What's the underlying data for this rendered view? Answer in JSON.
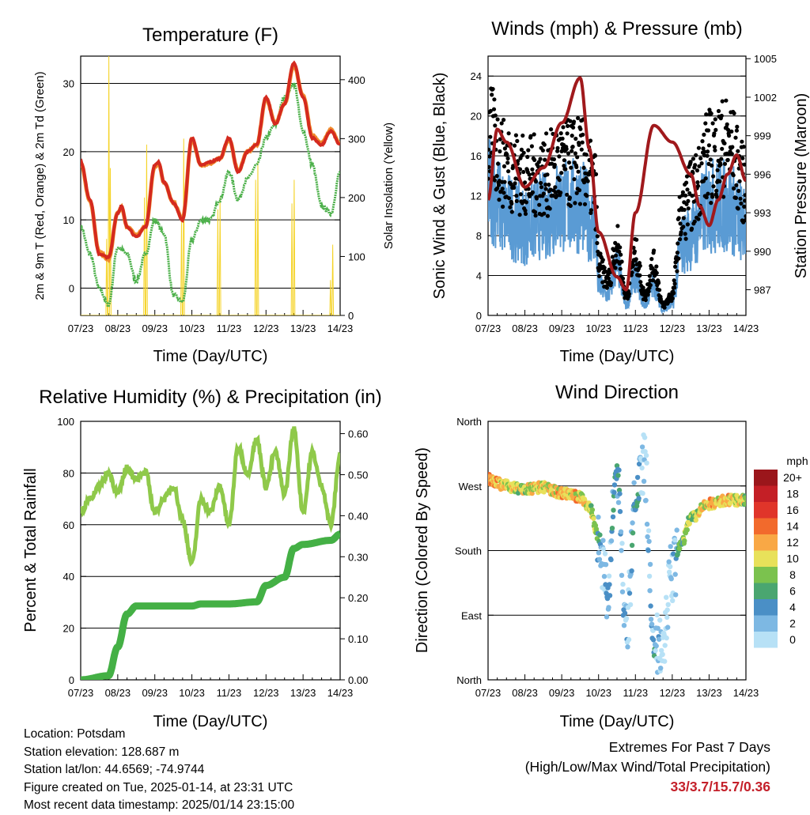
{
  "chart_data": [
    {
      "type": "line",
      "title": "Temperature (F)",
      "xlabel": "Time (Day/UTC)",
      "ylabel": "2m & 9m T (Red, Orange) & 2m Td (Green)",
      "y2label": "Solar Insolation (Yellow)",
      "x_ticks": [
        "07/23",
        "08/23",
        "09/23",
        "10/23",
        "11/23",
        "12/23",
        "13/23",
        "14/23"
      ],
      "xlim_days": [
        0,
        7
      ],
      "ylim": [
        -4,
        34
      ],
      "y_ticks": [
        0,
        10,
        20,
        30
      ],
      "y2lim": [
        0,
        440
      ],
      "y2_ticks": [
        0,
        100,
        200,
        300,
        400
      ],
      "grid": true,
      "series": [
        {
          "name": "2m T",
          "color": "#d42a1f",
          "axis": "left",
          "t": [
            0,
            0.25,
            0.5,
            0.75,
            1,
            1.1,
            1.25,
            1.5,
            1.75,
            2,
            2.1,
            2.25,
            2.5,
            2.75,
            3,
            3.25,
            3.5,
            3.75,
            4,
            4.25,
            4.5,
            4.75,
            5,
            5.25,
            5.5,
            5.75,
            6,
            6.25,
            6.5,
            6.75,
            7
          ],
          "values": [
            18.5,
            13,
            5,
            4.5,
            11,
            12,
            9,
            7.5,
            9,
            18,
            18.5,
            15.5,
            12.5,
            10,
            22,
            18,
            18.5,
            19,
            22,
            17,
            20,
            21,
            28,
            24,
            27,
            33,
            28,
            22,
            21,
            23,
            21
          ]
        },
        {
          "name": "9m T",
          "color": "#f08a2c",
          "axis": "left",
          "t": [
            0,
            0.25,
            0.5,
            0.75,
            1,
            1.1,
            1.25,
            1.5,
            1.75,
            2,
            2.1,
            2.25,
            2.5,
            2.75,
            3,
            3.25,
            3.5,
            3.75,
            4,
            4.25,
            4.5,
            4.75,
            5,
            5.25,
            5.5,
            5.75,
            6,
            6.25,
            6.5,
            6.75,
            7
          ],
          "values": [
            18.3,
            12.8,
            5.3,
            4.2,
            11,
            11.8,
            9,
            7.8,
            9,
            17.8,
            18.3,
            15.5,
            12.5,
            10.2,
            21.8,
            18,
            18.3,
            19,
            21.8,
            17.2,
            20,
            21,
            27.8,
            24.2,
            27,
            32.6,
            28.2,
            22.3,
            21.3,
            23.2,
            21.2
          ]
        },
        {
          "name": "2m Td",
          "color": "#4cb04a",
          "axis": "left",
          "t": [
            0,
            0.25,
            0.5,
            0.75,
            1,
            1.25,
            1.5,
            1.75,
            2,
            2.25,
            2.5,
            2.75,
            3,
            3.25,
            3.5,
            3.75,
            4,
            4.25,
            4.5,
            4.75,
            5,
            5.25,
            5.5,
            5.75,
            6,
            6.25,
            6.5,
            6.75,
            7
          ],
          "values": [
            9,
            5,
            0,
            -2.5,
            6,
            5,
            1,
            5,
            10,
            8,
            -1,
            -2,
            7,
            10,
            10,
            13,
            17,
            13,
            16,
            18,
            22,
            24,
            28,
            30,
            23,
            18,
            12,
            11,
            17
          ]
        },
        {
          "name": "Solar Insolation",
          "color": "#f5d327",
          "axis": "right",
          "peaks_t": [
            0.7,
            0.76,
            0.8,
            1.72,
            1.78,
            2.72,
            2.78,
            3.7,
            3.76,
            4.72,
            4.78,
            5.7,
            5.76,
            6.74,
            6.8
          ],
          "peaks": [
            130,
            440,
            250,
            200,
            290,
            160,
            300,
            180,
            200,
            230,
            260,
            190,
            230,
            60,
            120
          ]
        }
      ]
    },
    {
      "type": "scatter",
      "title": "Winds (mph) & Pressure (mb)",
      "xlabel": "Time (Day/UTC)",
      "ylabel": "Sonic Wind & Gust (Blue, Black)",
      "y2label": "Station Pressure (Maroon)",
      "x_ticks": [
        "07/23",
        "08/23",
        "09/23",
        "10/23",
        "11/23",
        "12/23",
        "13/23",
        "14/23"
      ],
      "xlim_days": [
        0,
        7
      ],
      "ylim": [
        0,
        26
      ],
      "y_ticks": [
        0,
        4,
        8,
        12,
        16,
        20,
        24
      ],
      "y2lim": [
        985,
        1005.2
      ],
      "y2_ticks": [
        987,
        990,
        993,
        996,
        999,
        1002,
        1005
      ],
      "grid": true,
      "series": [
        {
          "name": "Sonic Wind",
          "color": "#5a9bd4",
          "axis": "left",
          "t": [
            0,
            0.5,
            1,
            1.5,
            2,
            2.5,
            2.9,
            3,
            3.25,
            3.5,
            3.75,
            4,
            4.25,
            4.5,
            4.75,
            5,
            5.25,
            5.5,
            6,
            6.5,
            7
          ],
          "values": [
            13,
            10,
            9,
            10,
            11,
            11,
            9,
            3,
            2,
            5,
            1,
            4,
            1,
            3,
            0.5,
            1,
            7,
            8,
            11,
            11,
            9
          ]
        },
        {
          "name": "Gust",
          "color": "#000000",
          "axis": "left",
          "t": [
            0,
            0.5,
            1,
            1.5,
            2,
            2.5,
            2.9,
            3,
            3.25,
            3.5,
            3.75,
            4,
            4.25,
            4.5,
            4.75,
            5,
            5.25,
            5.5,
            6,
            6.5,
            7
          ],
          "values": [
            18,
            15,
            14,
            14,
            15,
            15.5,
            13,
            5,
            3.5,
            7,
            2,
            6,
            2,
            5,
            1,
            2,
            10,
            12,
            16,
            17,
            13
          ]
        },
        {
          "name": "Station Pressure",
          "color": "#a0191c",
          "axis": "right",
          "t": [
            0,
            0.25,
            0.5,
            1,
            1.5,
            2,
            2.5,
            2.75,
            3,
            3.5,
            3.75,
            4,
            4.5,
            5,
            5.5,
            5.75,
            6,
            6.25,
            6.5,
            6.75,
            7
          ],
          "values": [
            994,
            999.5,
            998.5,
            995,
            996.5,
            1000,
            1003.5,
            998,
            991.5,
            988,
            987,
            993,
            999.8,
            998.5,
            996,
            993.5,
            992,
            994,
            996,
            997.5,
            995.5
          ]
        }
      ]
    },
    {
      "type": "line",
      "title": "Relative Humidity (%) & Precipitation (in)",
      "xlabel": "Time (Day/UTC)",
      "ylabel": "Percent & Total Rainfall",
      "x_ticks": [
        "07/23",
        "08/23",
        "09/23",
        "10/23",
        "11/23",
        "12/23",
        "13/23",
        "14/23"
      ],
      "xlim_days": [
        0,
        7
      ],
      "ylim": [
        0,
        100
      ],
      "y_ticks": [
        0,
        20,
        40,
        60,
        80,
        100
      ],
      "y2lim": [
        0,
        0.63
      ],
      "y2_ticks": [
        "0.00",
        "0.10",
        "0.20",
        "0.30",
        "0.40",
        "0.50",
        "0.60"
      ],
      "grid": true,
      "series": [
        {
          "name": "Relative Humidity",
          "color": "#8fc94a",
          "axis": "left",
          "t": [
            0,
            0.25,
            0.5,
            0.75,
            1,
            1.25,
            1.5,
            1.75,
            2,
            2.25,
            2.5,
            2.75,
            3,
            3.25,
            3.5,
            3.75,
            4,
            4.25,
            4.5,
            4.75,
            5,
            5.25,
            5.5,
            5.75,
            6,
            6.25,
            6.5,
            6.75,
            7
          ],
          "values": [
            65,
            70,
            75,
            80,
            72,
            82,
            78,
            80,
            65,
            70,
            75,
            62,
            45,
            70,
            65,
            75,
            60,
            90,
            80,
            93,
            75,
            88,
            72,
            97,
            65,
            88,
            75,
            60,
            87
          ]
        },
        {
          "name": "Total Precipitation",
          "color": "#44b045",
          "axis": "right",
          "t": [
            0,
            0.75,
            1,
            1.25,
            1.5,
            2,
            3,
            3.25,
            4,
            4.75,
            5,
            5.5,
            5.75,
            6,
            6.75,
            7
          ],
          "values": [
            0,
            0.01,
            0.08,
            0.16,
            0.18,
            0.18,
            0.18,
            0.185,
            0.185,
            0.19,
            0.23,
            0.25,
            0.32,
            0.33,
            0.34,
            0.355
          ]
        }
      ]
    },
    {
      "type": "scatter",
      "title": "Wind Direction",
      "xlabel": "Time (Day/UTC)",
      "ylabel": "Direction (Colored By Speed)",
      "x_ticks": [
        "07/23",
        "08/23",
        "09/23",
        "10/23",
        "11/23",
        "12/23",
        "13/23",
        "14/23"
      ],
      "xlim_days": [
        0,
        7
      ],
      "ylim": [
        0,
        360
      ],
      "y_ticks": [
        "North",
        "East",
        "South",
        "West",
        "North"
      ],
      "y_tick_values": [
        0,
        90,
        180,
        270,
        360
      ],
      "grid": true,
      "direction": {
        "t": [
          0,
          0.5,
          1,
          1.5,
          2,
          2.5,
          2.75,
          3,
          3.25,
          3.5,
          3.75,
          4,
          4.25,
          4.5,
          4.75,
          5,
          5.25,
          5.5,
          6,
          6.5,
          7
        ],
        "values": [
          280,
          270,
          265,
          268,
          260,
          255,
          240,
          200,
          120,
          300,
          60,
          240,
          300,
          40,
          60,
          150,
          190,
          225,
          245,
          250,
          250
        ]
      },
      "legend": {
        "title": "mph",
        "position": "right",
        "labels": [
          "20+",
          "18",
          "16",
          "14",
          "12",
          "10",
          "8",
          "6",
          "4",
          "2",
          "0"
        ],
        "colors": [
          "#9b161b",
          "#c41f26",
          "#e0352a",
          "#f26a2c",
          "#f9a845",
          "#e8e15a",
          "#7bc24e",
          "#4aa670",
          "#4a8fc6",
          "#7db8e3",
          "#b7e1f6"
        ]
      }
    }
  ],
  "info": {
    "location": "Location: Potsdam",
    "elevation": "Station elevation: 128.687 m",
    "latlon": "Station lat/lon: 44.6569; -74.9744",
    "created": "Figure created on Tue, 2025-01-14, at 23:31 UTC",
    "recent": "Most recent data timestamp: 2025/01/14 23:15:00"
  },
  "extremes": {
    "title": "Extremes For Past 7 Days",
    "subtitle": "(High/Low/Max Wind/Total Precipitation)",
    "values": "33/3.7/15.7/0.36"
  }
}
